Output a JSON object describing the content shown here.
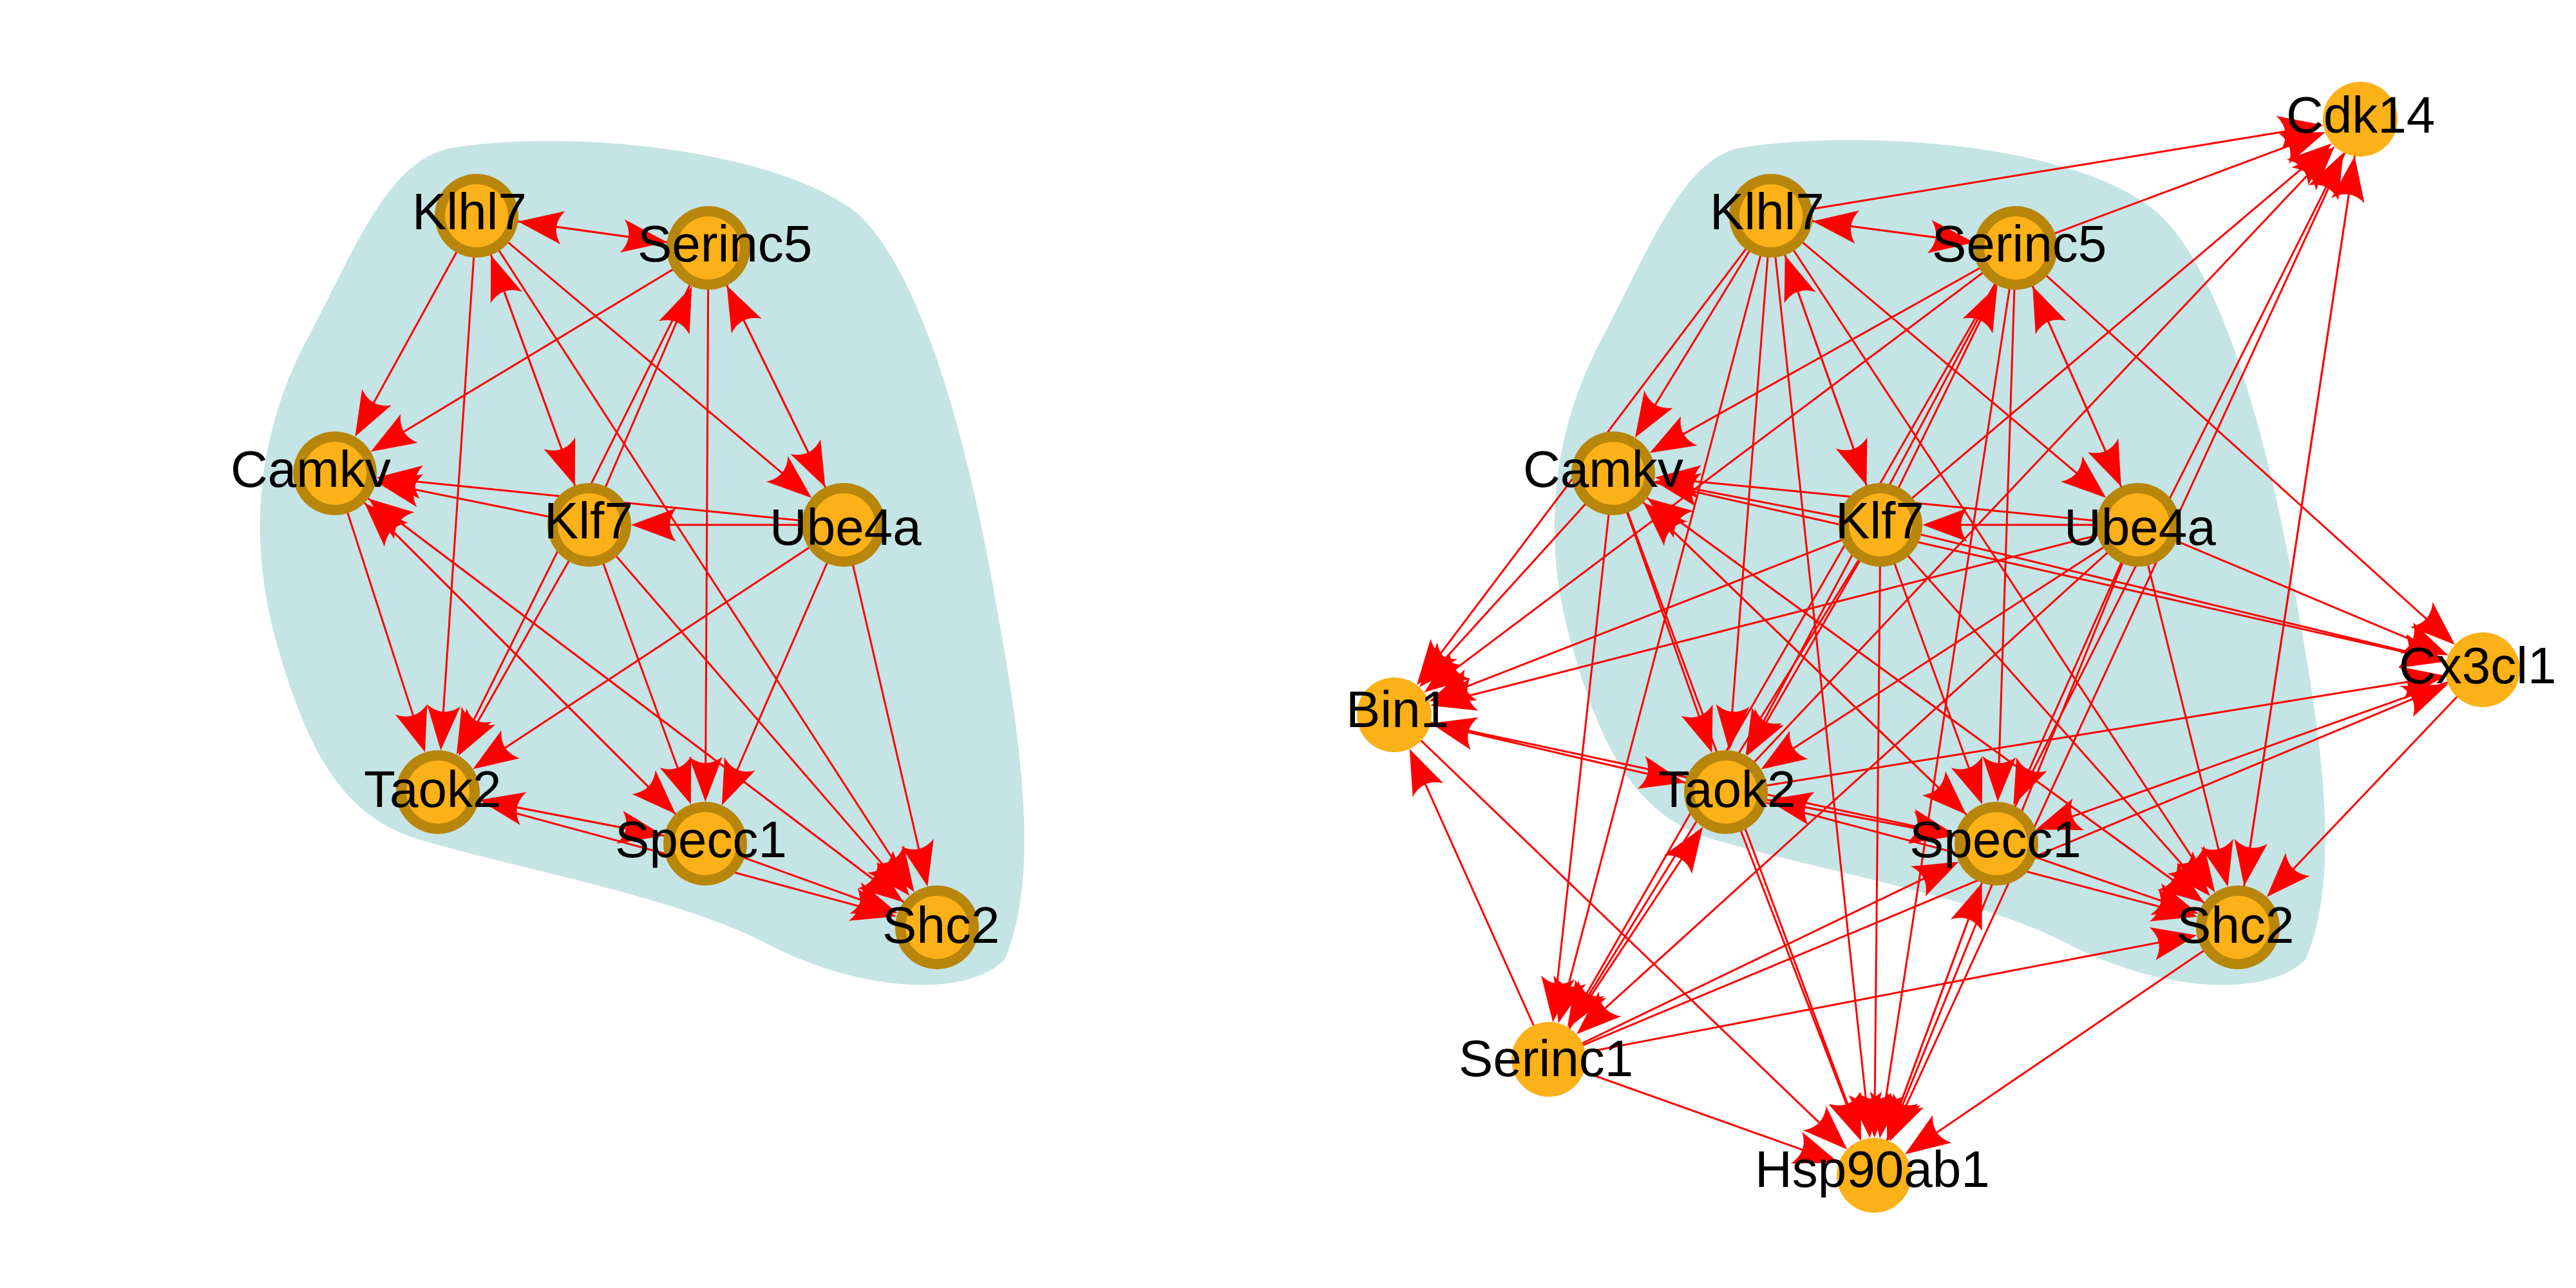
{
  "colors": {
    "background": "#ffffff",
    "cluster_fill": "#c5e4e5",
    "node_fill": "#fbb117",
    "node_ring": "#b8860b",
    "edge": "#ff0000",
    "label": "#000000"
  },
  "networks": [
    {
      "id": "left",
      "cluster_members": [
        "Klhl7",
        "Serinc5",
        "Camkv",
        "Klf7",
        "Ube4a",
        "Taok2",
        "Specc1",
        "Shc2"
      ],
      "nodes": [
        {
          "id": "Klhl7",
          "label": "Klhl7",
          "in_cluster": true
        },
        {
          "id": "Serinc5",
          "label": "Serinc5",
          "in_cluster": true
        },
        {
          "id": "Camkv",
          "label": "Camkv",
          "in_cluster": true
        },
        {
          "id": "Klf7",
          "label": "Klf7",
          "in_cluster": true
        },
        {
          "id": "Ube4a",
          "label": "Ube4a",
          "in_cluster": true
        },
        {
          "id": "Taok2",
          "label": "Taok2",
          "in_cluster": true
        },
        {
          "id": "Specc1",
          "label": "Specc1",
          "in_cluster": true
        },
        {
          "id": "Shc2",
          "label": "Shc2",
          "in_cluster": true
        }
      ],
      "edges": [
        [
          "Klhl7",
          "Serinc5"
        ],
        [
          "Serinc5",
          "Klhl7"
        ],
        [
          "Klhl7",
          "Camkv"
        ],
        [
          "Klhl7",
          "Klf7"
        ],
        [
          "Klf7",
          "Klhl7"
        ],
        [
          "Klhl7",
          "Ube4a"
        ],
        [
          "Klhl7",
          "Taok2"
        ],
        [
          "Klhl7",
          "Shc2"
        ],
        [
          "Serinc5",
          "Camkv"
        ],
        [
          "Klf7",
          "Serinc5"
        ],
        [
          "Ube4a",
          "Serinc5"
        ],
        [
          "Serinc5",
          "Ube4a"
        ],
        [
          "Serinc5",
          "Taok2"
        ],
        [
          "Serinc5",
          "Specc1"
        ],
        [
          "Klf7",
          "Camkv"
        ],
        [
          "Ube4a",
          "Camkv"
        ],
        [
          "Ube4a",
          "Klf7"
        ],
        [
          "Camkv",
          "Taok2"
        ],
        [
          "Specc1",
          "Camkv"
        ],
        [
          "Shc2",
          "Camkv"
        ],
        [
          "Klf7",
          "Taok2"
        ],
        [
          "Klf7",
          "Specc1"
        ],
        [
          "Klf7",
          "Shc2"
        ],
        [
          "Ube4a",
          "Taok2"
        ],
        [
          "Ube4a",
          "Specc1"
        ],
        [
          "Ube4a",
          "Shc2"
        ],
        [
          "Specc1",
          "Taok2"
        ],
        [
          "Taok2",
          "Specc1"
        ],
        [
          "Taok2",
          "Shc2"
        ],
        [
          "Specc1",
          "Shc2"
        ],
        [
          "Camkv",
          "Specc1"
        ],
        [
          "Camkv",
          "Shc2"
        ]
      ]
    },
    {
      "id": "right",
      "cluster_members": [
        "Klhl7",
        "Serinc5",
        "Camkv",
        "Klf7",
        "Ube4a",
        "Taok2",
        "Specc1",
        "Shc2"
      ],
      "nodes": [
        {
          "id": "Klhl7",
          "label": "Klhl7",
          "in_cluster": true
        },
        {
          "id": "Serinc5",
          "label": "Serinc5",
          "in_cluster": true
        },
        {
          "id": "Camkv",
          "label": "Camkv",
          "in_cluster": true
        },
        {
          "id": "Klf7",
          "label": "Klf7",
          "in_cluster": true
        },
        {
          "id": "Ube4a",
          "label": "Ube4a",
          "in_cluster": true
        },
        {
          "id": "Taok2",
          "label": "Taok2",
          "in_cluster": true
        },
        {
          "id": "Specc1",
          "label": "Specc1",
          "in_cluster": true
        },
        {
          "id": "Shc2",
          "label": "Shc2",
          "in_cluster": true
        },
        {
          "id": "Cdk14",
          "label": "Cdk14",
          "in_cluster": false
        },
        {
          "id": "Cx3cl1",
          "label": "Cx3cl1",
          "in_cluster": false
        },
        {
          "id": "Bin1",
          "label": "Bin1",
          "in_cluster": false
        },
        {
          "id": "Serinc1",
          "label": "Serinc1",
          "in_cluster": false
        },
        {
          "id": "Hsp90ab1",
          "label": "Hsp90ab1",
          "in_cluster": false
        }
      ],
      "edges": [
        [
          "Klhl7",
          "Serinc5"
        ],
        [
          "Serinc5",
          "Klhl7"
        ],
        [
          "Klhl7",
          "Camkv"
        ],
        [
          "Klhl7",
          "Klf7"
        ],
        [
          "Klf7",
          "Klhl7"
        ],
        [
          "Klhl7",
          "Ube4a"
        ],
        [
          "Klhl7",
          "Taok2"
        ],
        [
          "Klhl7",
          "Shc2"
        ],
        [
          "Serinc5",
          "Camkv"
        ],
        [
          "Klf7",
          "Serinc5"
        ],
        [
          "Ube4a",
          "Serinc5"
        ],
        [
          "Serinc5",
          "Ube4a"
        ],
        [
          "Serinc5",
          "Taok2"
        ],
        [
          "Serinc5",
          "Specc1"
        ],
        [
          "Klf7",
          "Camkv"
        ],
        [
          "Ube4a",
          "Camkv"
        ],
        [
          "Ube4a",
          "Klf7"
        ],
        [
          "Camkv",
          "Taok2"
        ],
        [
          "Specc1",
          "Camkv"
        ],
        [
          "Shc2",
          "Camkv"
        ],
        [
          "Klf7",
          "Taok2"
        ],
        [
          "Klf7",
          "Specc1"
        ],
        [
          "Klf7",
          "Shc2"
        ],
        [
          "Ube4a",
          "Taok2"
        ],
        [
          "Ube4a",
          "Specc1"
        ],
        [
          "Ube4a",
          "Shc2"
        ],
        [
          "Specc1",
          "Taok2"
        ],
        [
          "Taok2",
          "Specc1"
        ],
        [
          "Taok2",
          "Shc2"
        ],
        [
          "Specc1",
          "Shc2"
        ],
        [
          "Camkv",
          "Specc1"
        ],
        [
          "Camkv",
          "Shc2"
        ],
        [
          "Klhl7",
          "Cdk14"
        ],
        [
          "Serinc5",
          "Cdk14"
        ],
        [
          "Taok2",
          "Cdk14"
        ],
        [
          "Specc1",
          "Cdk14"
        ],
        [
          "Shc2",
          "Cdk14"
        ],
        [
          "Klf7",
          "Cdk14"
        ],
        [
          "Cdk14",
          "Shc2"
        ],
        [
          "Serinc5",
          "Cx3cl1"
        ],
        [
          "Ube4a",
          "Cx3cl1"
        ],
        [
          "Klf7",
          "Cx3cl1"
        ],
        [
          "Camkv",
          "Cx3cl1"
        ],
        [
          "Serinc1",
          "Cx3cl1"
        ],
        [
          "Cx3cl1",
          "Shc2"
        ],
        [
          "Cx3cl1",
          "Specc1"
        ],
        [
          "Taok2",
          "Cx3cl1"
        ],
        [
          "Klhl7",
          "Bin1"
        ],
        [
          "Camkv",
          "Bin1"
        ],
        [
          "Klf7",
          "Bin1"
        ],
        [
          "Ube4a",
          "Bin1"
        ],
        [
          "Serinc5",
          "Bin1"
        ],
        [
          "Bin1",
          "Taok2"
        ],
        [
          "Taok2",
          "Bin1"
        ],
        [
          "Bin1",
          "Specc1"
        ],
        [
          "Serinc1",
          "Bin1"
        ],
        [
          "Klhl7",
          "Serinc1"
        ],
        [
          "Camkv",
          "Serinc1"
        ],
        [
          "Klf7",
          "Serinc1"
        ],
        [
          "Ube4a",
          "Serinc1"
        ],
        [
          "Serinc5",
          "Serinc1"
        ],
        [
          "Serinc1",
          "Taok2"
        ],
        [
          "Serinc1",
          "Specc1"
        ],
        [
          "Serinc1",
          "Shc2"
        ],
        [
          "Serinc1",
          "Hsp90ab1"
        ],
        [
          "Klhl7",
          "Hsp90ab1"
        ],
        [
          "Klf7",
          "Hsp90ab1"
        ],
        [
          "Ube4a",
          "Hsp90ab1"
        ],
        [
          "Serinc5",
          "Hsp90ab1"
        ],
        [
          "Taok2",
          "Hsp90ab1"
        ],
        [
          "Specc1",
          "Hsp90ab1"
        ],
        [
          "Hsp90ab1",
          "Specc1"
        ],
        [
          "Shc2",
          "Hsp90ab1"
        ],
        [
          "Camkv",
          "Hsp90ab1"
        ],
        [
          "Bin1",
          "Hsp90ab1"
        ],
        [
          "Cdk14",
          "Hsp90ab1"
        ]
      ]
    }
  ]
}
